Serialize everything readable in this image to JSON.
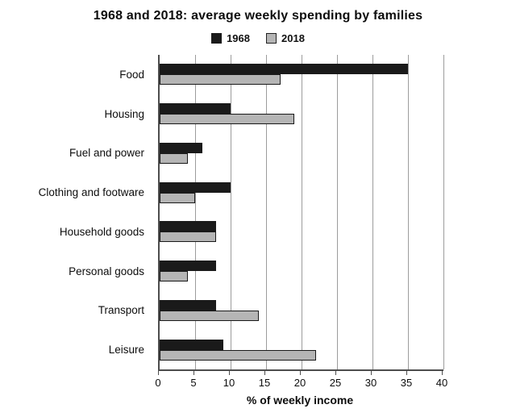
{
  "title": "1968 and 2018: average weekly spending by families",
  "xlabel": "% of weekly income",
  "legend": [
    {
      "label": "1968",
      "color": "#1a1a1a"
    },
    {
      "label": "2018",
      "color": "#b5b5b5"
    }
  ],
  "chart_data": {
    "type": "bar",
    "orientation": "horizontal",
    "title": "1968 and 2018: average weekly spending by families",
    "xlabel": "% of weekly income",
    "ylabel": "",
    "categories": [
      "Food",
      "Housing",
      "Fuel and power",
      "Clothing and footware",
      "Household goods",
      "Personal goods",
      "Transport",
      "Leisure"
    ],
    "series": [
      {
        "name": "1968",
        "color": "#1a1a1a",
        "values": [
          35,
          10,
          6,
          10,
          8,
          8,
          8,
          9
        ]
      },
      {
        "name": "2018",
        "color": "#b5b5b5",
        "values": [
          17,
          19,
          4,
          5,
          8,
          4,
          14,
          22
        ]
      }
    ],
    "xlim": [
      0,
      40
    ],
    "xticks": [
      0,
      5,
      10,
      15,
      20,
      25,
      30,
      35,
      40
    ],
    "grid": true,
    "legend_position": "top"
  }
}
